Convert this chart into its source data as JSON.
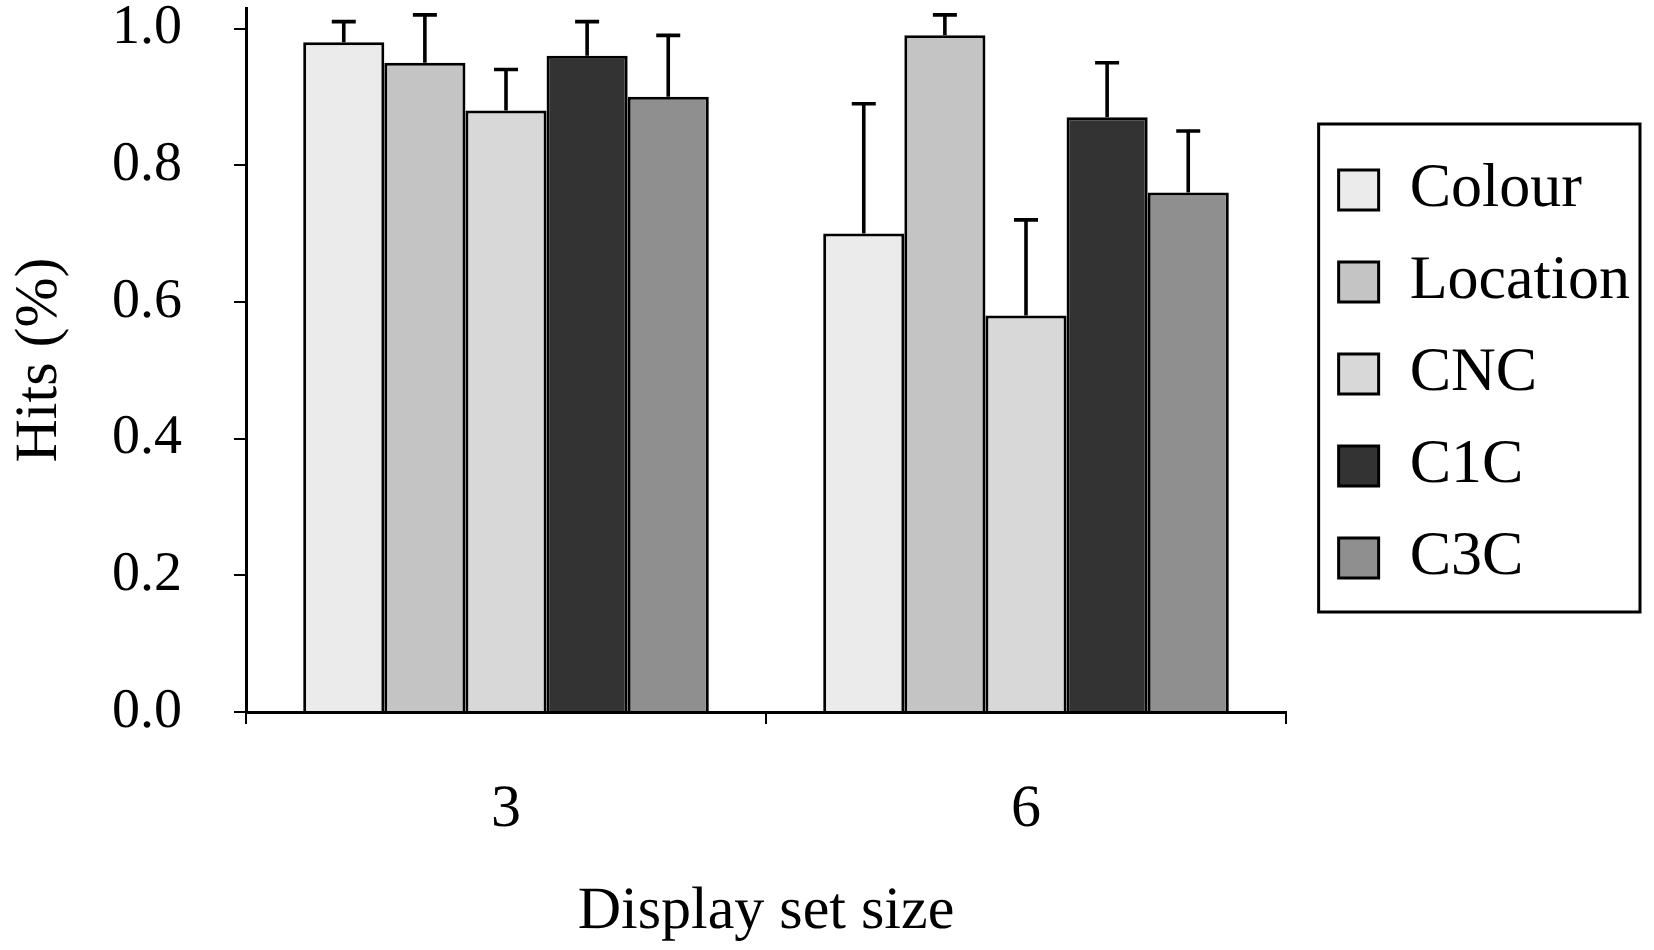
{
  "chart_data": {
    "type": "bar",
    "xlabel": "Display set size",
    "ylabel": "Hits (%)",
    "categories": [
      "3",
      "6"
    ],
    "series": [
      {
        "name": "Colour",
        "color": "#ebebeb",
        "values": [
          0.98,
          0.7
        ],
        "errors": [
          [
            0.98,
            1.01
          ],
          [
            0.7,
            0.89
          ]
        ]
      },
      {
        "name": "Location",
        "color": "#c4c4c4",
        "values": [
          0.95,
          0.99
        ],
        "errors": [
          [
            0.95,
            1.02
          ],
          [
            0.99,
            1.02
          ]
        ]
      },
      {
        "name": "CNC",
        "color": "#d8d8d8",
        "values": [
          0.88,
          0.58
        ],
        "errors": [
          [
            0.88,
            0.94
          ],
          [
            0.58,
            0.72
          ]
        ]
      },
      {
        "name": "C1C",
        "color": "#333333",
        "values": [
          0.96,
          0.87
        ],
        "errors": [
          [
            0.96,
            1.01
          ],
          [
            0.87,
            0.95
          ]
        ]
      },
      {
        "name": "C3C",
        "color": "#8f8f8f",
        "values": [
          0.9,
          0.76
        ],
        "errors": [
          [
            0.9,
            0.99
          ],
          [
            0.76,
            0.85
          ]
        ]
      }
    ],
    "ylim": [
      0,
      1.03
    ],
    "yticks": [
      {
        "value": 0,
        "label": "0.0"
      },
      0.2,
      0.4,
      0.6,
      0.8,
      {
        "value": 1,
        "label": "1.0"
      }
    ],
    "legend": "right",
    "grid": false
  }
}
